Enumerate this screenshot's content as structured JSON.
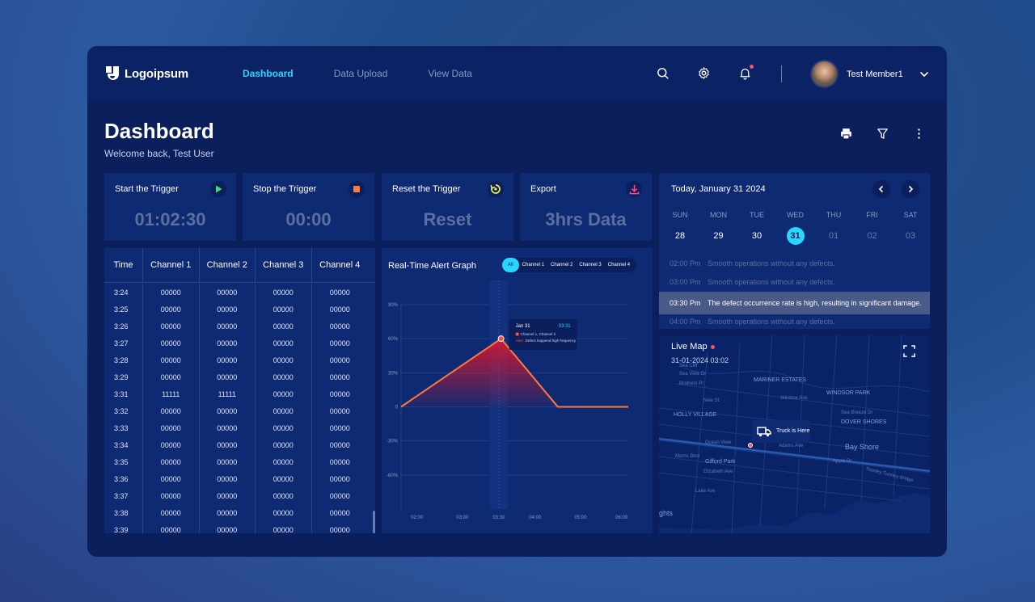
{
  "brand": {
    "name": "Logoipsum"
  },
  "nav": {
    "items": [
      "Dashboard",
      "Data Upload",
      "View Data"
    ],
    "active": 0
  },
  "user": {
    "name": "Test Member1"
  },
  "page": {
    "title": "Dashboard",
    "welcome": "Welcome back, Test User"
  },
  "triggers": [
    {
      "label": "Start the Trigger",
      "value": "01:02:30",
      "icon": "play-icon",
      "color": "#2ee56b"
    },
    {
      "label": "Stop the Trigger",
      "value": "00:00",
      "icon": "stop-icon",
      "color": "#ff7a3d"
    },
    {
      "label": "Reset the Trigger",
      "value": "Reset",
      "icon": "reset-icon",
      "color": "#e6f04a"
    },
    {
      "label": "Export",
      "value": "3hrs Data",
      "icon": "download-icon",
      "color": "#ff4d8a"
    }
  ],
  "table": {
    "headers": [
      "Time",
      "Channel 1",
      "Channel 2",
      "Channel 3",
      "Channel 4"
    ],
    "rows": [
      [
        "3:24",
        "00000",
        "00000",
        "00000",
        "00000"
      ],
      [
        "3:25",
        "00000",
        "00000",
        "00000",
        "00000"
      ],
      [
        "3:26",
        "00000",
        "00000",
        "00000",
        "00000"
      ],
      [
        "3:27",
        "00000",
        "00000",
        "00000",
        "00000"
      ],
      [
        "3:28",
        "00000",
        "00000",
        "00000",
        "00000"
      ],
      [
        "3:29",
        "00000",
        "00000",
        "00000",
        "00000"
      ],
      [
        "3:31",
        "11111",
        "11111",
        "00000",
        "00000"
      ],
      [
        "3:32",
        "00000",
        "00000",
        "00000",
        "00000"
      ],
      [
        "3:33",
        "00000",
        "00000",
        "00000",
        "00000"
      ],
      [
        "3:34",
        "00000",
        "00000",
        "00000",
        "00000"
      ],
      [
        "3:35",
        "00000",
        "00000",
        "00000",
        "00000"
      ],
      [
        "3:36",
        "00000",
        "00000",
        "00000",
        "00000"
      ],
      [
        "3:37",
        "00000",
        "00000",
        "00000",
        "00000"
      ],
      [
        "3:38",
        "00000",
        "00000",
        "00000",
        "00000"
      ],
      [
        "3:39",
        "00000",
        "00000",
        "00000",
        "00000"
      ]
    ]
  },
  "graph": {
    "title": "Real-Time Alert Graph",
    "legend": [
      "All",
      "Channel 1",
      "Channel 2",
      "Channel 3",
      "Channel 4"
    ],
    "tooltip": {
      "date": "Jan 31",
      "time": "03:31",
      "channels": "Channel 1, Channel 2",
      "alert_tag": "Alert",
      "alert_text": "Defect happend high frequency"
    }
  },
  "chart_data": {
    "type": "line",
    "x": [
      "02:00",
      "03:00",
      "03:30",
      "04:00",
      "05:00",
      "06:00"
    ],
    "y_ticks": [
      "90%",
      "60%",
      "30%",
      "0",
      "-30%",
      "-60%"
    ],
    "ylim": [
      -90,
      90
    ],
    "series": [
      {
        "points": [
          [
            0,
            0
          ],
          [
            0.44,
            60
          ],
          [
            0.69,
            0
          ],
          [
            1.0,
            0
          ]
        ]
      }
    ],
    "highlight_x": "03:30"
  },
  "calendar": {
    "title": "Today, January 31 2024",
    "days": [
      {
        "name": "SUN",
        "date": "28",
        "state": "normal"
      },
      {
        "name": "MON",
        "date": "29",
        "state": "normal"
      },
      {
        "name": "TUE",
        "date": "30",
        "state": "normal"
      },
      {
        "name": "WED",
        "date": "31",
        "state": "selected"
      },
      {
        "name": "THU",
        "date": "01",
        "state": "dim"
      },
      {
        "name": "FRI",
        "date": "02",
        "state": "dim"
      },
      {
        "name": "SAT",
        "date": "03",
        "state": "dim"
      }
    ],
    "events": [
      {
        "time": "02:00 Pm",
        "text": "Smooth operations without any defects.",
        "highlight": false
      },
      {
        "time": "03:00 Pm",
        "text": "Smooth operations without any defects.",
        "highlight": false
      },
      {
        "time": "03:30 Pm",
        "text": "The defect occurrence rate is high, resulting in significant damage.",
        "highlight": true
      },
      {
        "time": "04:00 Pm",
        "text": "Smooth operations without any defects.",
        "highlight": false
      }
    ]
  },
  "map": {
    "title": "Live Map",
    "date": "31-01-2024 03:02",
    "truck_label": "Truck is Here",
    "labels": [
      "Sea Cliff",
      "MARINER ESTATES",
      "WINDSOR PARK",
      "HOLLY VILLAGE",
      "DOVER SHORES",
      "Bay Shore",
      "Gifford Park",
      "Ocean View",
      "Adams Ave",
      "Morris Blvd",
      "Elizabeth Ave",
      "Lake Ave",
      "Stanley Tunney Bridge",
      "ghts",
      "Brothers Pl",
      "Sea View Dr",
      "New St",
      "Windsor Ave",
      "Sea Breeze Dr",
      "Apple Dr"
    ]
  }
}
